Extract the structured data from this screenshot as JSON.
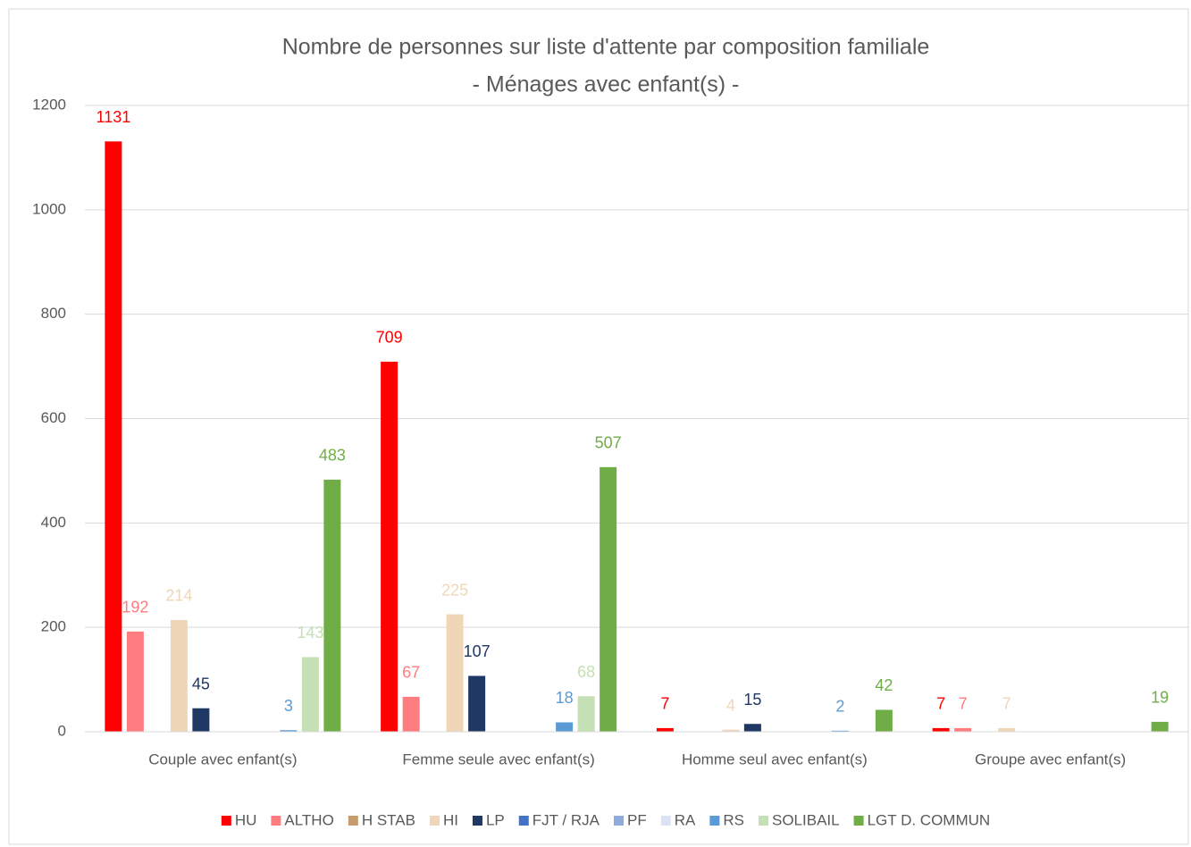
{
  "chart_data": {
    "type": "bar",
    "title": "Nombre de personnes sur liste d'attente par composition familiale",
    "subtitle": "- Ménages avec enfant(s) -",
    "categories": [
      "Couple avec enfant(s)",
      "Femme seule avec enfant(s)",
      "Homme seul avec enfant(s)",
      "Groupe avec enfant(s)"
    ],
    "series": [
      {
        "name": "HU",
        "color": "#ff0000",
        "values": [
          1131,
          709,
          7,
          7
        ]
      },
      {
        "name": "ALTHO",
        "color": "#ff7c80",
        "values": [
          192,
          67,
          null,
          7
        ]
      },
      {
        "name": "H STAB",
        "color": "#c69c6d",
        "values": [
          null,
          null,
          null,
          null
        ]
      },
      {
        "name": "HI",
        "color": "#f0d6b9",
        "values": [
          214,
          225,
          4,
          7
        ]
      },
      {
        "name": "LP",
        "color": "#1f3864",
        "values": [
          45,
          107,
          15,
          null
        ]
      },
      {
        "name": "FJT / RJA",
        "color": "#4472c4",
        "values": [
          null,
          null,
          null,
          null
        ]
      },
      {
        "name": "PF",
        "color": "#8faadc",
        "values": [
          null,
          null,
          null,
          null
        ]
      },
      {
        "name": "RA",
        "color": "#dae3f3",
        "values": [
          null,
          null,
          null,
          null
        ]
      },
      {
        "name": "RS",
        "color": "#5b9bd5",
        "values": [
          3,
          18,
          2,
          null
        ]
      },
      {
        "name": "SOLIBAIL",
        "color": "#c5e0b4",
        "values": [
          143,
          68,
          null,
          null
        ]
      },
      {
        "name": "LGT D. COMMUN",
        "color": "#70ad47",
        "values": [
          483,
          507,
          42,
          19
        ]
      }
    ],
    "ylim": [
      0,
      1200
    ],
    "yticks": [
      0,
      200,
      400,
      600,
      800,
      1000,
      1200
    ],
    "grid": true,
    "legend": "bottom"
  }
}
